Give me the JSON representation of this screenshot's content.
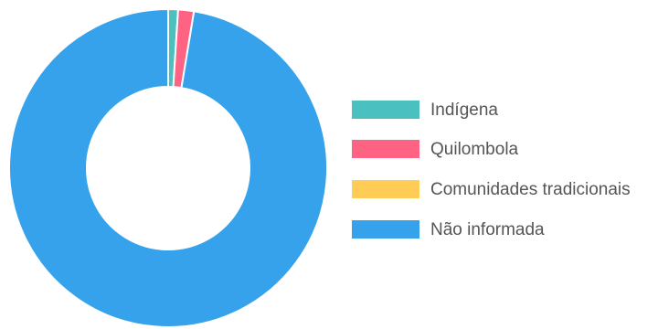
{
  "chart_data": {
    "type": "pie",
    "variant": "doughnut",
    "title": "",
    "categories": [
      "Indígena",
      "Quilombola",
      "Comunidades tradicionais",
      "Não informada"
    ],
    "values": [
      1.0,
      1.6,
      0.0,
      97.4
    ],
    "colors": [
      "#4BC0C0",
      "#FF6384",
      "#FFCD56",
      "#36A2EB"
    ],
    "legend": {
      "position": "right",
      "items": [
        {
          "label": "Indígena",
          "color": "#4BC0C0"
        },
        {
          "label": "Quilombola",
          "color": "#FF6384"
        },
        {
          "label": "Comunidades tradicionais",
          "color": "#FFCD56"
        },
        {
          "label": "Não informada",
          "color": "#36A2EB"
        }
      ]
    }
  }
}
